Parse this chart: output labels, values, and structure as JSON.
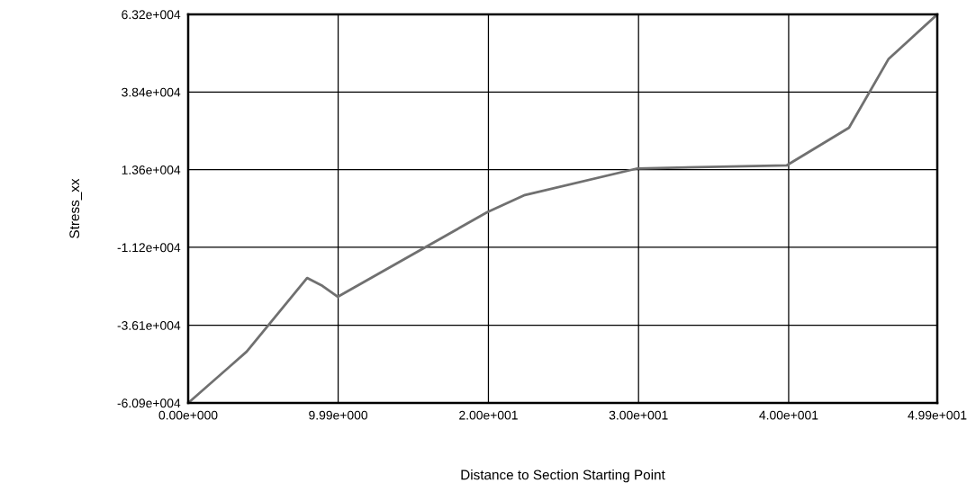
{
  "chart_data": {
    "type": "line",
    "xlabel": "Distance to Section Starting Point",
    "ylabel": "Stress_xx",
    "series": [
      {
        "color": "#707070",
        "x": [
          0,
          3.9,
          7.92,
          8.94,
          9.96,
          19.91,
          22.43,
          29.93,
          39.88,
          44.02,
          46.66,
          49.9
        ],
        "values": [
          -60900,
          -44500,
          -21000,
          -23500,
          -27000,
          0,
          5500,
          14000,
          15000,
          27000,
          49000,
          63200
        ]
      }
    ],
    "xlim": [
      0,
      49.9
    ],
    "ylim": [
      -60900,
      63200
    ],
    "xticks": [
      {
        "value": 0,
        "label": "0.00e+000"
      },
      {
        "value": 9.99,
        "label": "9.99e+000"
      },
      {
        "value": 20.0,
        "label": "2.00e+001"
      },
      {
        "value": 30.0,
        "label": "3.00e+001"
      },
      {
        "value": 40.0,
        "label": "4.00e+001"
      },
      {
        "value": 49.9,
        "label": "4.99e+001"
      }
    ],
    "yticks": [
      {
        "value": -60900,
        "label": "-6.09e+004"
      },
      {
        "value": -36100,
        "label": "-3.61e+004"
      },
      {
        "value": -11200,
        "label": "-1.12e+004"
      },
      {
        "value": 13600,
        "label": "1.36e+004"
      },
      {
        "value": 38400,
        "label": "3.84e+004"
      },
      {
        "value": 63200,
        "label": "6.32e+004"
      }
    ],
    "grid": true,
    "legend": false
  }
}
